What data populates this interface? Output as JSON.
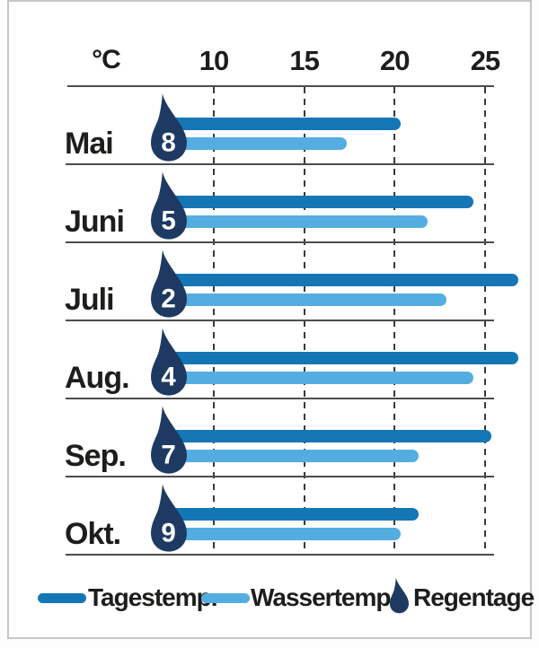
{
  "colors": {
    "bar_dark": "#1476b5",
    "bar_light": "#54ade0",
    "drop_navy": "#1e3a63",
    "text": "#1d1d1b",
    "line_gray": "#4c4c4c",
    "frame_gray": "#c6c6c6",
    "drop_number_white": "#ffffff"
  },
  "axis": {
    "unit_label": "°C",
    "ticks": [
      "10",
      "15",
      "20",
      "25"
    ]
  },
  "chart_data": {
    "type": "bar",
    "orientation": "horizontal",
    "title": "",
    "xlabel": "°C",
    "ylabel": "",
    "xlim": [
      0,
      27.5
    ],
    "xticks": [
      10,
      15,
      20,
      25
    ],
    "grid": "dashed-vertical",
    "legend_position": "bottom",
    "categories": [
      "Mai",
      "Juni",
      "Juli",
      "Aug.",
      "Sep.",
      "Okt."
    ],
    "series": [
      {
        "name": "Tagestemp.",
        "color_key": "bar_dark",
        "values": [
          20,
          24,
          26.5,
          26.5,
          25,
          21
        ]
      },
      {
        "name": "Wassertemp.",
        "color_key": "bar_light",
        "values": [
          17,
          21.5,
          22.5,
          24,
          21,
          20
        ]
      }
    ],
    "rain_days": {
      "name": "Regentage",
      "icon": "raindrop-icon",
      "values": [
        8,
        5,
        2,
        4,
        7,
        9
      ]
    }
  },
  "legend": {
    "items": [
      {
        "label": "Tagestemp.",
        "swatch": "bar-dark-pill"
      },
      {
        "label": "Wassertemp.",
        "swatch": "bar-light-pill"
      },
      {
        "label": "Regentage",
        "swatch": "raindrop-icon"
      }
    ]
  }
}
